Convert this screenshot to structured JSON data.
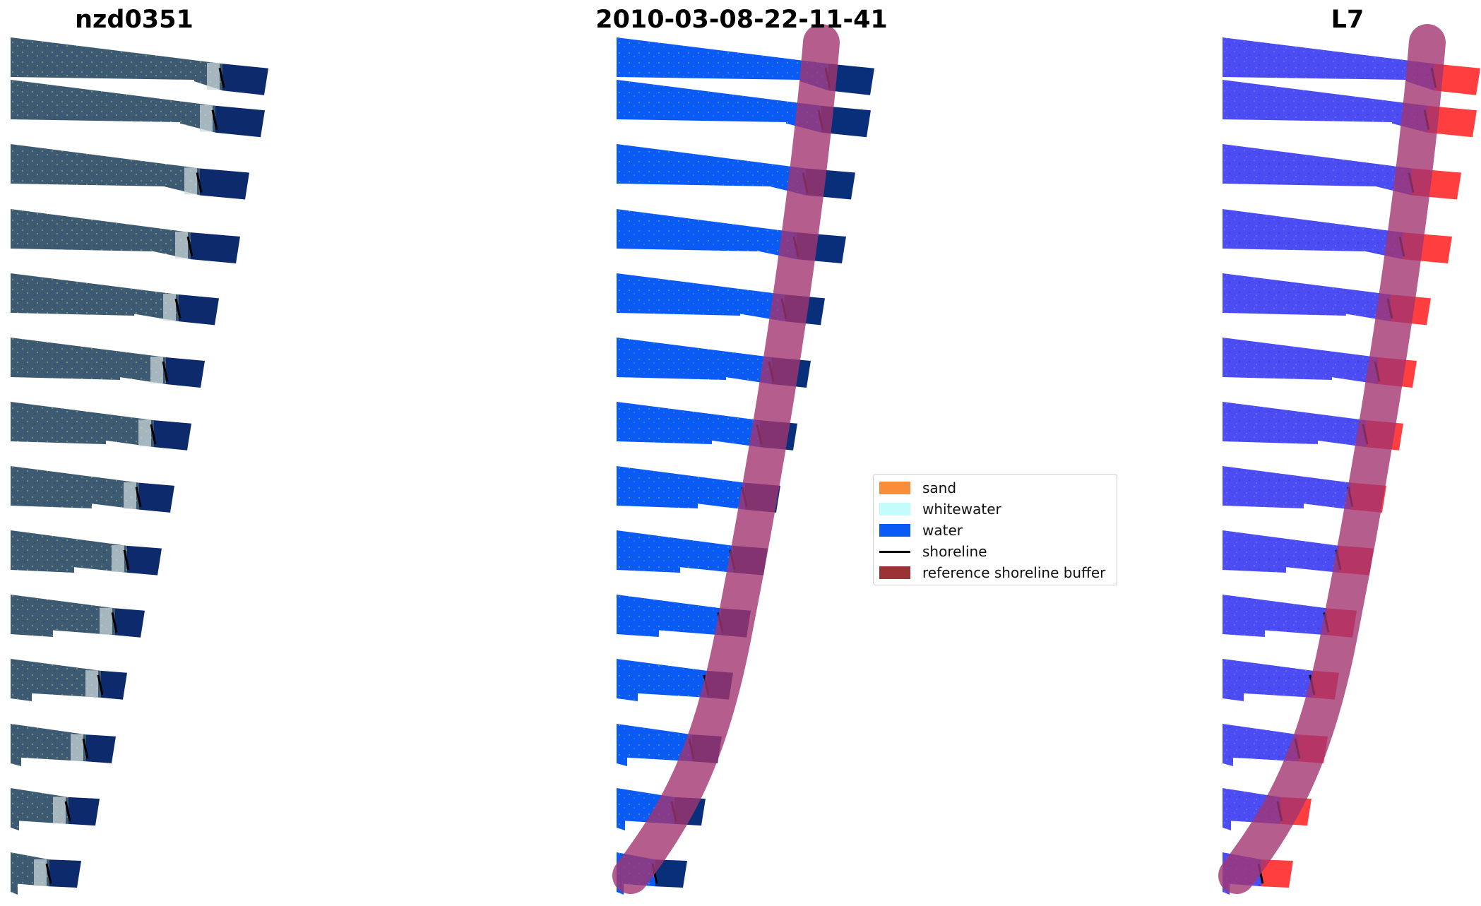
{
  "panels": [
    {
      "title": "nzd0351",
      "style": "rgb"
    },
    {
      "title": "2010-03-08-22-11-41",
      "style": "classified"
    },
    {
      "title": "L7",
      "style": "mndwi"
    }
  ],
  "legend": {
    "items": [
      {
        "label": "sand",
        "color": "#f98e3a",
        "kind": "patch"
      },
      {
        "label": "whitewater",
        "color": "#c4fcfc",
        "kind": "patch"
      },
      {
        "label": "water",
        "color": "#0a5bf5",
        "kind": "patch"
      },
      {
        "label": "shoreline",
        "color": "#000000",
        "kind": "line"
      },
      {
        "label": "reference shoreline buffer",
        "color": "#9a3236",
        "kind": "patch"
      }
    ]
  },
  "colors": {
    "rgb_land": "#3d5a73",
    "rgb_sea": "#0c2a6c",
    "class_water": "#0a5bf5",
    "class_sea": "#0a2f7a",
    "mndwi_land": "#4b4df2",
    "mndwi_sea": "#ff2a2a",
    "buffer": "#a3356f",
    "shoreline": "#000000"
  }
}
